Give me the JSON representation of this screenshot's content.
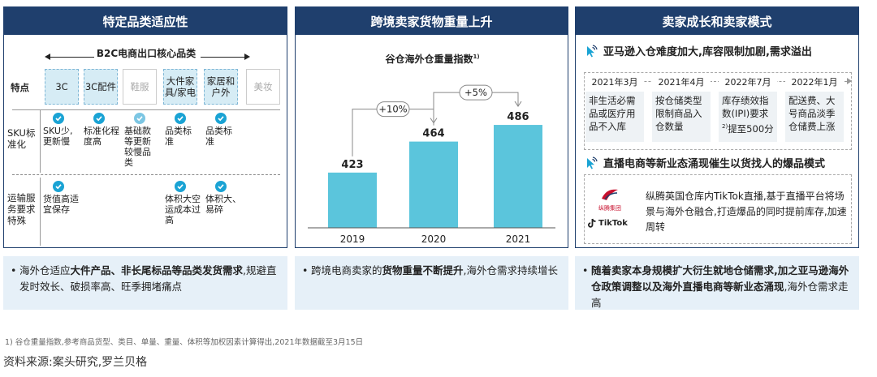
{
  "panel1": {
    "header": "特定品类适应性",
    "b2c_title": "B2C电商出口核心品类",
    "row_labels": {
      "feature": "特点",
      "sku": "SKU标准化",
      "shipping": "运输服务要求特殊"
    },
    "categories": [
      "3C",
      "3C配件",
      "鞋服",
      "大件家具/家电",
      "家居和户外",
      "美妆"
    ],
    "sku_texts": [
      "SKU少,更新慢",
      "标准化程度高",
      "基础款等更新较慢品类",
      "品类标准",
      "品类标准"
    ],
    "ship_texts": [
      "货值高适宜保存",
      "体积大空运成本过高",
      "体积大、易碎"
    ],
    "bullet_plain_1": "海外仓适应",
    "bullet_bold_1": "大件产品、非长尾标品等品类发货需求",
    "bullet_plain_2": ",规避直发时效长、破损率高、旺季拥堵痛点"
  },
  "panel2": {
    "header": "跨境卖家货物重量上升",
    "chart_title": "谷仓海外仓重量指数",
    "chart_title_sup": "1)",
    "bullet_plain_1": "跨境电商卖家的",
    "bullet_bold_1": "货物重量不断提升",
    "bullet_plain_2": ",海外仓需求持续增长"
  },
  "chart_data": {
    "type": "bar",
    "title": "谷仓海外仓重量指数",
    "categories": [
      "2019",
      "2020",
      "2021"
    ],
    "values": [
      423,
      464,
      486
    ],
    "growth_labels": [
      "+10%",
      "+5%"
    ],
    "bar_color": "#5bc5dc"
  },
  "panel3": {
    "header": "卖家成长和卖家模式",
    "section1_title": "亚马逊入仓难度加大,库容限制加剧,需求溢出",
    "timeline": [
      {
        "date": "2021年3月",
        "text": "非生活必需品或医疗用品不入库"
      },
      {
        "date": "2021年4月",
        "text": "按仓储类型限制商品入仓数量"
      },
      {
        "date": "2022年7月",
        "text": "库存绩效指数(IPI)要求",
        "sup": "2)",
        "text2": "提至500分"
      },
      {
        "date": "2022年1月",
        "text": "配送费、大号商品淡季仓储费上涨"
      }
    ],
    "section2_title": "直播电商等新业态涌现催生以货找人的爆品模式",
    "logo1_text": "纵腾集团",
    "logo2_text": "TikTok",
    "live_text": "纵腾英国仓库内TikTok直播,基于直播平台将场景与海外仓融合,打造爆品的同时提前库存,加速周转",
    "bullet_bold_1": "随着卖家本身规模扩大衍生就地仓储需求,加之亚马逊海外仓政策调整以及海外直播电商等新业态涌现",
    "bullet_plain_2": ",海外仓需求走高"
  },
  "footnote": "1) 谷仓重量指数,参考商品货型、类目、单量、重量、体积等加权因素计算得出,2021年数据截至3月15日",
  "source": "资料来源:案头研究,罗兰贝格"
}
